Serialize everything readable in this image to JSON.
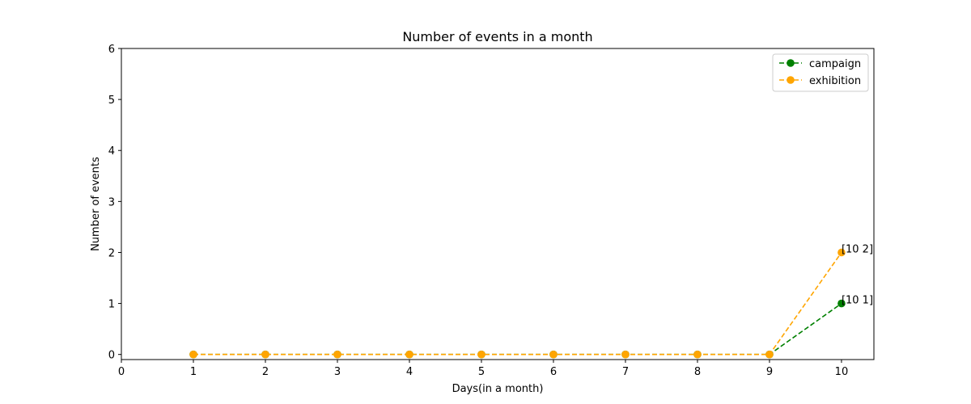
{
  "chart_data": {
    "type": "line",
    "title": "Number of events in a month",
    "xlabel": "Days(in a month)",
    "ylabel": "Number of events",
    "xlim": [
      0,
      10.45
    ],
    "ylim": [
      -0.1,
      6
    ],
    "xticks": [
      0,
      1,
      2,
      3,
      4,
      5,
      6,
      7,
      8,
      9,
      10
    ],
    "yticks": [
      0,
      1,
      2,
      3,
      4,
      5,
      6
    ],
    "grid": false,
    "legend_position": "top-right",
    "x": [
      1,
      2,
      3,
      4,
      5,
      6,
      7,
      8,
      9,
      10
    ],
    "series": [
      {
        "name": "campaign",
        "color": "#008000",
        "line_style": "dashed",
        "marker": "circle",
        "values": [
          0,
          0,
          0,
          0,
          0,
          0,
          0,
          0,
          0,
          1
        ]
      },
      {
        "name": "exhibition",
        "color": "#FFA500",
        "line_style": "dashed",
        "marker": "circle",
        "values": [
          0,
          0,
          0,
          0,
          0,
          0,
          0,
          0,
          0,
          2
        ]
      }
    ],
    "annotations": [
      {
        "text": "[10 2]",
        "x": 10,
        "y": 2
      },
      {
        "text": "[10 1]",
        "x": 10,
        "y": 1
      }
    ]
  }
}
